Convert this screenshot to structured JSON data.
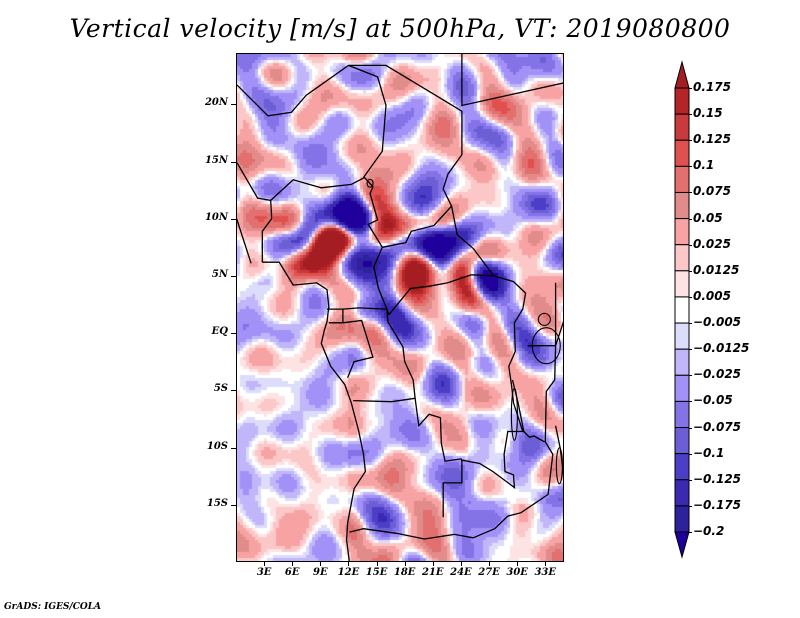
{
  "title": "Vertical velocity [m/s] at 500hPa, VT: 2019080800",
  "credit": "GrADS: IGES/COLA",
  "chart_data": {
    "type": "heatmap",
    "title": "Vertical velocity [m/s] at 500hPa, VT: 2019080800",
    "variable": "Vertical velocity",
    "units": "m/s",
    "level": "500hPa",
    "valid_time": "2019080800",
    "xlabel": "",
    "ylabel": "",
    "x_range_deg": [
      0,
      35
    ],
    "y_range_deg": [
      -20,
      24.5
    ],
    "x_ticks": [
      {
        "value": 3,
        "label": "3E"
      },
      {
        "value": 6,
        "label": "6E"
      },
      {
        "value": 9,
        "label": "9E"
      },
      {
        "value": 12,
        "label": "12E"
      },
      {
        "value": 15,
        "label": "15E"
      },
      {
        "value": 18,
        "label": "18E"
      },
      {
        "value": 21,
        "label": "21E"
      },
      {
        "value": 24,
        "label": "24E"
      },
      {
        "value": 27,
        "label": "27E"
      },
      {
        "value": 30,
        "label": "30E"
      },
      {
        "value": 33,
        "label": "33E"
      }
    ],
    "y_ticks": [
      {
        "value": 20,
        "label": "20N"
      },
      {
        "value": 15,
        "label": "15N"
      },
      {
        "value": 10,
        "label": "10N"
      },
      {
        "value": 5,
        "label": "5N"
      },
      {
        "value": 0,
        "label": "EQ"
      },
      {
        "value": -5,
        "label": "5S"
      },
      {
        "value": -10,
        "label": "10S"
      },
      {
        "value": -15,
        "label": "15S"
      }
    ],
    "grid": false,
    "colorbar": {
      "placement": "right",
      "orientation": "vertical",
      "extend": "both",
      "levels": [
        0.175,
        0.15,
        0.125,
        0.1,
        0.075,
        0.05,
        0.025,
        0.0125,
        0.005,
        -0.005,
        -0.0125,
        -0.025,
        -0.05,
        -0.075,
        -0.1,
        -0.125,
        -0.175,
        -0.2
      ],
      "level_labels": [
        "0.175",
        "0.15",
        "0.125",
        "0.1",
        "0.075",
        "0.05",
        "0.025",
        "0.0125",
        "0.005",
        "−0.005",
        "−0.0125",
        "−0.025",
        "−0.05",
        "−0.075",
        "−0.1",
        "−0.125",
        "−0.175",
        "−0.2"
      ],
      "colors_top_to_bottom": [
        "#a31d22",
        "#b42528",
        "#c93a3d",
        "#e0504f",
        "#e36f6e",
        "#e28b8b",
        "#f7a3a3",
        "#fbc7c7",
        "#fde3e3",
        "#ffffff",
        "#dcdcfb",
        "#c0b6f9",
        "#a291f7",
        "#8373e7",
        "#6c5fd6",
        "#4d3ec8",
        "#3b29b1",
        "#2e219c",
        "#20009c"
      ]
    },
    "notes": "Filled-contour field of vertical velocity over west-central Africa; warm colors = positive, cool colors = negative. Strongest positive cells near 7-10N (Nigeria/Cameroon/CAR)."
  }
}
